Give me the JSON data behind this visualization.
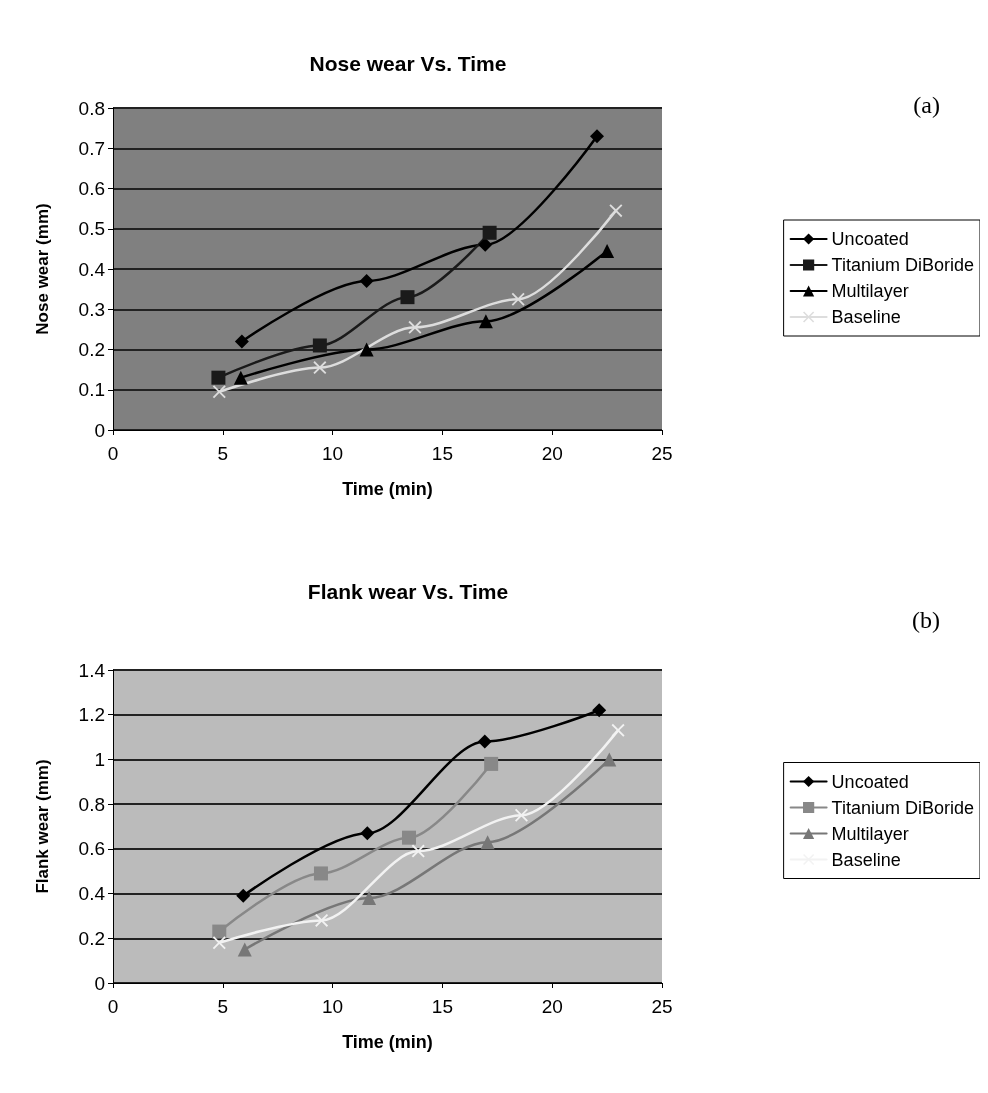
{
  "chart_data": [
    {
      "type": "line",
      "title": "Nose wear Vs. Time",
      "xlabel": "Time (min)",
      "ylabel": "Nose wear (mm)",
      "annotations": [
        "(a)"
      ],
      "xlim": [
        0,
        25
      ],
      "xticks": [
        0,
        5,
        10,
        15,
        20,
        25
      ],
      "ylim": [
        0,
        0.8
      ],
      "yticks": [
        0,
        0.1,
        0.2,
        0.3,
        0.4,
        0.5,
        0.6,
        0.7,
        0.8
      ],
      "grid": "y",
      "legend": "right",
      "line_style": "solid",
      "series": [
        {
          "name": "Uncoated",
          "color": "#000000",
          "marker": "diamond",
          "x": [
            5.87,
            11.55,
            16.95,
            22.04
          ],
          "values": [
            0.22,
            0.37,
            0.46,
            0.73
          ]
        },
        {
          "name": "Titanium DiBoride",
          "color": "#1a1a1a",
          "marker": "square",
          "x": [
            4.8,
            9.42,
            13.41,
            17.15
          ],
          "values": [
            0.13,
            0.21,
            0.33,
            0.49
          ]
        },
        {
          "name": "Multilayer",
          "color": "#000000",
          "marker": "triangle",
          "x": [
            5.82,
            11.55,
            16.98,
            22.5
          ],
          "values": [
            0.13,
            0.2,
            0.27,
            0.445
          ]
        },
        {
          "name": "Baseline",
          "color": "#dddddd",
          "marker": "cross",
          "x": [
            4.84,
            9.42,
            13.75,
            18.45,
            22.9
          ],
          "values": [
            0.095,
            0.155,
            0.255,
            0.325,
            0.545
          ]
        }
      ]
    },
    {
      "type": "line",
      "title": "Flank wear Vs. Time",
      "xlabel": "Time (min)",
      "ylabel": "Flank wear (mm)",
      "annotations": [
        "(b)"
      ],
      "xlim": [
        0,
        25
      ],
      "xticks": [
        0,
        5,
        10,
        15,
        20,
        25
      ],
      "ylim": [
        0,
        1.4
      ],
      "yticks": [
        0,
        0.2,
        0.4,
        0.6,
        0.8,
        1,
        1.2,
        1.4
      ],
      "grid": "y",
      "legend": "right",
      "line_style": "solid",
      "series": [
        {
          "name": "Uncoated",
          "color": "#000000",
          "marker": "diamond",
          "x": [
            5.93,
            11.58,
            16.93,
            22.14
          ],
          "values": [
            0.39,
            0.67,
            1.08,
            1.22
          ]
        },
        {
          "name": "Titanium DiBoride",
          "color": "#888888",
          "marker": "square",
          "x": [
            4.84,
            9.47,
            13.48,
            17.22
          ],
          "values": [
            0.23,
            0.49,
            0.65,
            0.98
          ]
        },
        {
          "name": "Multilayer",
          "color": "#777777",
          "marker": "triangle",
          "x": [
            6,
            11.66,
            17.06,
            22.6
          ],
          "values": [
            0.15,
            0.38,
            0.63,
            1.0
          ]
        },
        {
          "name": "Baseline",
          "color": "#f2f2f2",
          "marker": "cross",
          "x": [
            4.84,
            9.5,
            13.9,
            18.6,
            23.0
          ],
          "values": [
            0.18,
            0.28,
            0.59,
            0.75,
            1.13
          ]
        }
      ]
    }
  ]
}
